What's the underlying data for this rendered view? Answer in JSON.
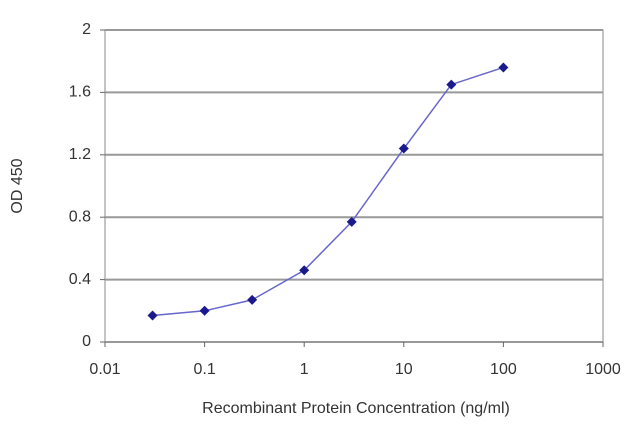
{
  "chart_data": {
    "type": "line",
    "x_label": "Recombinant Protein Concentration (ng/ml)",
    "y_label": "OD 450",
    "x": [
      0.03,
      0.1,
      0.3,
      1,
      3,
      10,
      30,
      100
    ],
    "series": [
      {
        "color": "#6666cc",
        "marker_color": "#1a1a8c",
        "values": [
          0.17,
          0.2,
          0.27,
          0.46,
          0.77,
          1.24,
          1.65,
          1.76
        ]
      }
    ],
    "xscale": "log",
    "xlim": [
      0.01,
      1000
    ],
    "xticks": [
      0.01,
      0.1,
      1,
      10,
      100,
      1000
    ],
    "ylim": [
      0,
      2
    ],
    "yticks": [
      0,
      0.4,
      0.8,
      1.2,
      1.6,
      2
    ],
    "grid": true
  }
}
